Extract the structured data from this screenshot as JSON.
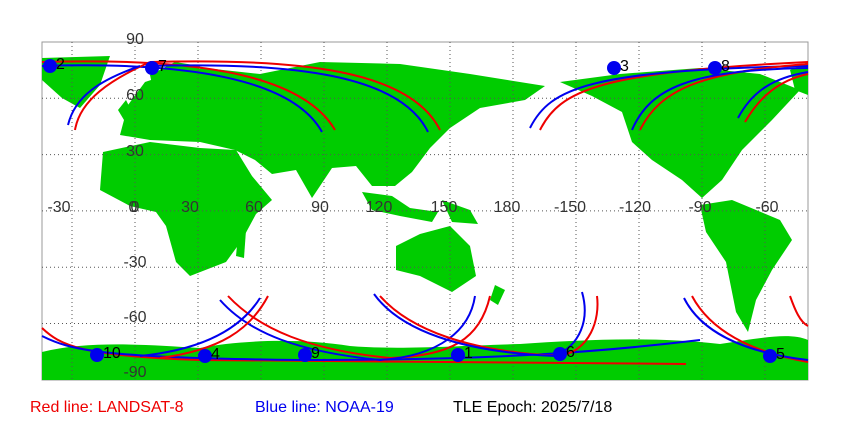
{
  "map": {
    "lon_labels": [
      "-30",
      "0",
      "30",
      "60",
      "90",
      "120",
      "150",
      "180",
      "-150",
      "-120",
      "-90",
      "-60"
    ],
    "lat_labels": [
      "90",
      "60",
      "30",
      "0",
      "-30",
      "-60",
      "-90"
    ],
    "satellite_points": [
      "2",
      "7",
      "3",
      "8",
      "10",
      "4",
      "9",
      "1",
      "6",
      "5"
    ],
    "legend": {
      "red": "Red line: LANDSAT-8",
      "blue": "Blue line: NOAA-19",
      "epoch": "TLE Epoch: 2025/7/18"
    }
  }
}
